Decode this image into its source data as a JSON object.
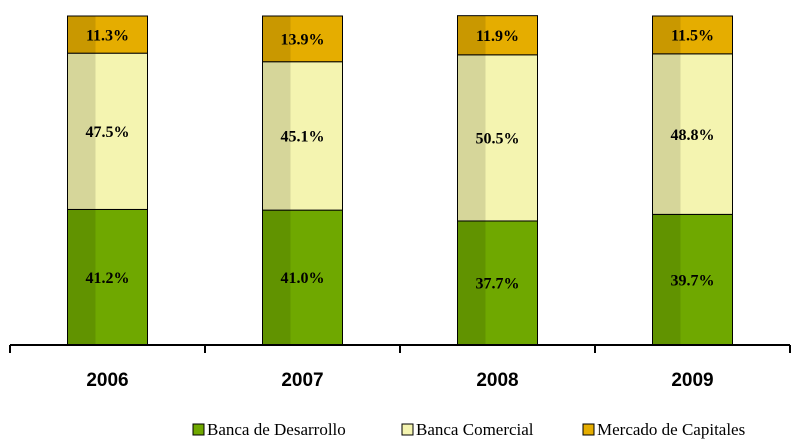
{
  "chart_data": {
    "type": "stacked_bar",
    "categories": [
      "2006",
      "2007",
      "2008",
      "2009"
    ],
    "series": [
      {
        "name": "Banca de Desarrollo",
        "color": "#6fa800",
        "values": [
          41.2,
          41.0,
          37.7,
          39.7
        ],
        "value_labels": [
          "41.2%",
          "41.0%",
          "37.7%",
          "39.7%"
        ]
      },
      {
        "name": "Banca Comercial",
        "color": "#f4f4b0",
        "values": [
          47.5,
          45.1,
          50.5,
          48.8
        ],
        "value_labels": [
          "47.5%",
          "45.1%",
          "50.5%",
          "48.8%"
        ]
      },
      {
        "name": "Mercado de Capitales",
        "color": "#e5ad00",
        "values": [
          11.3,
          13.9,
          11.9,
          11.5
        ],
        "value_labels": [
          "11.3%",
          "13.9%",
          "11.9%",
          "11.5%"
        ]
      }
    ],
    "ylim": [
      0,
      100
    ]
  }
}
